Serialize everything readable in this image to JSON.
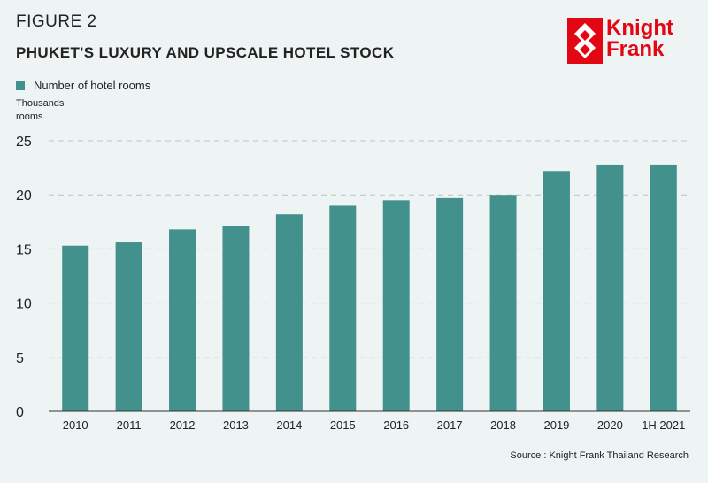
{
  "figure_label": "FIGURE 2",
  "title": "PHUKET'S LUXURY AND UPSCALE HOTEL STOCK",
  "logo": {
    "line1": "Knight",
    "line2": "Frank",
    "color": "#e30613"
  },
  "legend_label": "Number of hotel rooms",
  "unit": {
    "line1": "Thousands",
    "line2": "rooms"
  },
  "source": "Source : Knight Frank Thailand Research",
  "colors": {
    "bar": "#43918d",
    "grid": "#b9c4c4",
    "axis": "#333333",
    "background": "#eef3f3"
  },
  "chart_data": {
    "type": "bar",
    "categories": [
      "2010",
      "2011",
      "2012",
      "2013",
      "2014",
      "2015",
      "2016",
      "2017",
      "2018",
      "2019",
      "2020",
      "1H 2021"
    ],
    "series": [
      {
        "name": "Number of hotel rooms",
        "values": [
          15.3,
          15.6,
          16.8,
          17.1,
          18.2,
          19.0,
          19.5,
          19.7,
          20.0,
          22.2,
          22.8,
          22.8
        ]
      }
    ],
    "ylabel": "Thousands rooms",
    "ylim": [
      0,
      25
    ],
    "yticks": [
      0,
      5,
      10,
      15,
      20,
      25
    ],
    "grid": true,
    "legend_position": "top-left"
  }
}
